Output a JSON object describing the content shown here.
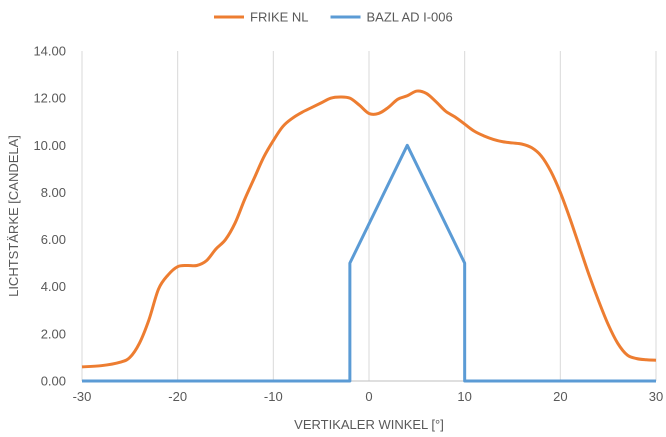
{
  "chart_data": {
    "type": "line",
    "xlabel": "VERTIKALER WINKEL [°]",
    "ylabel": "LICHTSTÄRKE [CANDELA]",
    "xlim": [
      -30,
      30
    ],
    "ylim": [
      0,
      14
    ],
    "x_ticks": [
      "-30",
      "-20",
      "-10",
      "0",
      "10",
      "20",
      "30"
    ],
    "y_ticks": [
      "0.00",
      "2.00",
      "4.00",
      "6.00",
      "8.00",
      "10.00",
      "12.00",
      "14.00"
    ],
    "grid": "vertical",
    "legend_position": "top",
    "series": [
      {
        "name": "FRIKE NL",
        "color": "#ED7D31",
        "smooth": true,
        "points": [
          [
            -30,
            0.6
          ],
          [
            -28,
            0.65
          ],
          [
            -26,
            0.8
          ],
          [
            -25,
            1.0
          ],
          [
            -24,
            1.6
          ],
          [
            -23,
            2.6
          ],
          [
            -22,
            3.9
          ],
          [
            -21,
            4.5
          ],
          [
            -20,
            4.85
          ],
          [
            -19,
            4.9
          ],
          [
            -18,
            4.9
          ],
          [
            -17,
            5.1
          ],
          [
            -16,
            5.6
          ],
          [
            -15,
            6.0
          ],
          [
            -14,
            6.7
          ],
          [
            -13,
            7.7
          ],
          [
            -12,
            8.6
          ],
          [
            -11,
            9.5
          ],
          [
            -10,
            10.2
          ],
          [
            -9,
            10.8
          ],
          [
            -8,
            11.15
          ],
          [
            -7,
            11.4
          ],
          [
            -6,
            11.6
          ],
          [
            -5,
            11.8
          ],
          [
            -4,
            12.0
          ],
          [
            -3,
            12.05
          ],
          [
            -2,
            12.0
          ],
          [
            -1,
            11.7
          ],
          [
            0,
            11.35
          ],
          [
            1,
            11.35
          ],
          [
            2,
            11.6
          ],
          [
            3,
            11.95
          ],
          [
            4,
            12.1
          ],
          [
            5,
            12.3
          ],
          [
            6,
            12.2
          ],
          [
            7,
            11.85
          ],
          [
            8,
            11.45
          ],
          [
            9,
            11.2
          ],
          [
            10,
            10.9
          ],
          [
            11,
            10.6
          ],
          [
            12,
            10.4
          ],
          [
            13,
            10.25
          ],
          [
            14,
            10.15
          ],
          [
            15,
            10.1
          ],
          [
            16,
            10.05
          ],
          [
            17,
            9.9
          ],
          [
            18,
            9.55
          ],
          [
            19,
            8.9
          ],
          [
            20,
            8.0
          ],
          [
            21,
            6.9
          ],
          [
            22,
            5.7
          ],
          [
            23,
            4.5
          ],
          [
            24,
            3.4
          ],
          [
            25,
            2.4
          ],
          [
            26,
            1.6
          ],
          [
            27,
            1.1
          ],
          [
            28,
            0.95
          ],
          [
            29,
            0.9
          ],
          [
            30,
            0.88
          ]
        ]
      },
      {
        "name": "BAZL AD I-006",
        "color": "#5B9BD5",
        "smooth": false,
        "points": [
          [
            -30,
            0
          ],
          [
            -2,
            0
          ],
          [
            -2,
            5
          ],
          [
            4,
            10
          ],
          [
            10,
            5
          ],
          [
            10,
            0
          ],
          [
            30,
            0
          ]
        ]
      }
    ]
  }
}
